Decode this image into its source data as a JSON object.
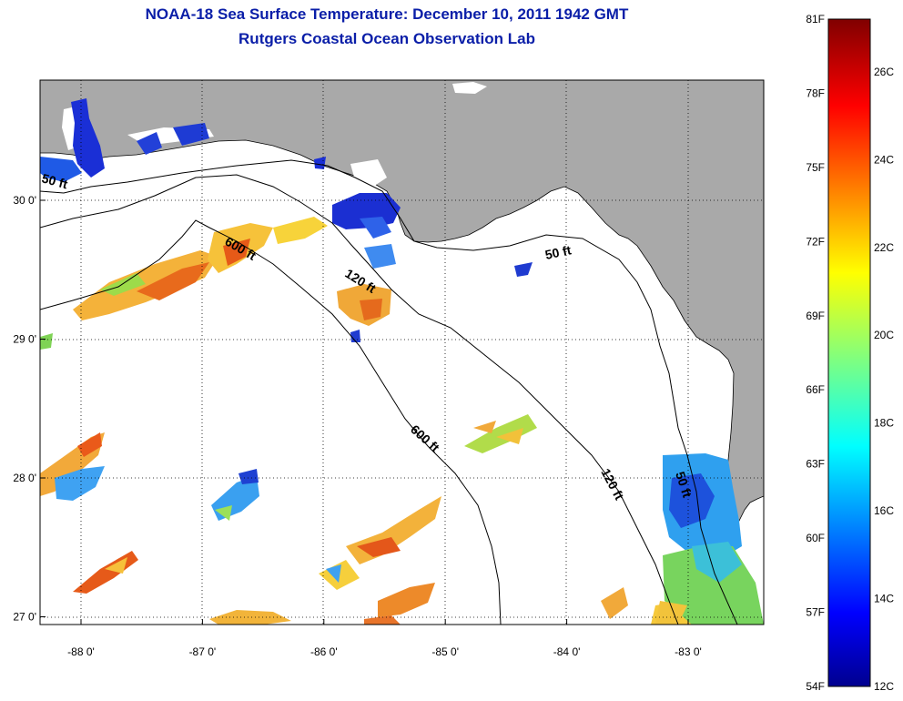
{
  "title": "NOAA-18 Sea Surface Temperature:  December 10, 2011 1942 GMT",
  "subtitle": "Rutgers Coastal Ocean Observation Lab",
  "map": {
    "lon_range": [
      -88.5,
      -82.4
    ],
    "lat_range": [
      26.95,
      30.85
    ],
    "lon_ticks": [
      {
        "value": -88,
        "label": "-88 0'"
      },
      {
        "value": -87,
        "label": "-87 0'"
      },
      {
        "value": -86,
        "label": "-86 0'"
      },
      {
        "value": -85,
        "label": "-85 0'"
      },
      {
        "value": -84,
        "label": "-84 0'"
      },
      {
        "value": -83,
        "label": "-83 0'"
      }
    ],
    "lat_ticks": [
      {
        "value": 30,
        "label": "30 0'"
      },
      {
        "value": 29,
        "label": "29 0'"
      },
      {
        "value": 28,
        "label": "28 0'"
      },
      {
        "value": 27,
        "label": "27 0'"
      }
    ],
    "grid": "dotted",
    "land_color": "#a9a9a9",
    "ocean_color": "#ffffff",
    "contour_labels": [
      {
        "text": "50 ft",
        "id": "label-50ft-west"
      },
      {
        "text": "600 ft",
        "id": "label-600ft-north"
      },
      {
        "text": "120 ft",
        "id": "label-120ft-central"
      },
      {
        "text": "50 ft",
        "id": "label-50ft-east"
      },
      {
        "text": "600 ft",
        "id": "label-600ft-south"
      },
      {
        "text": "120 ft",
        "id": "label-120ft-south"
      },
      {
        "text": "50 ft",
        "id": "label-50ft-south"
      }
    ]
  },
  "colorbar": {
    "fahrenheit_labels": [
      "81F",
      "78F",
      "75F",
      "72F",
      "69F",
      "66F",
      "63F",
      "60F",
      "57F",
      "54F"
    ],
    "celsius_labels": [
      "26C",
      "24C",
      "22C",
      "20C",
      "18C",
      "16C",
      "14C",
      "12C"
    ],
    "colormap": "jet",
    "range_celsius": [
      12,
      27.2
    ]
  }
}
